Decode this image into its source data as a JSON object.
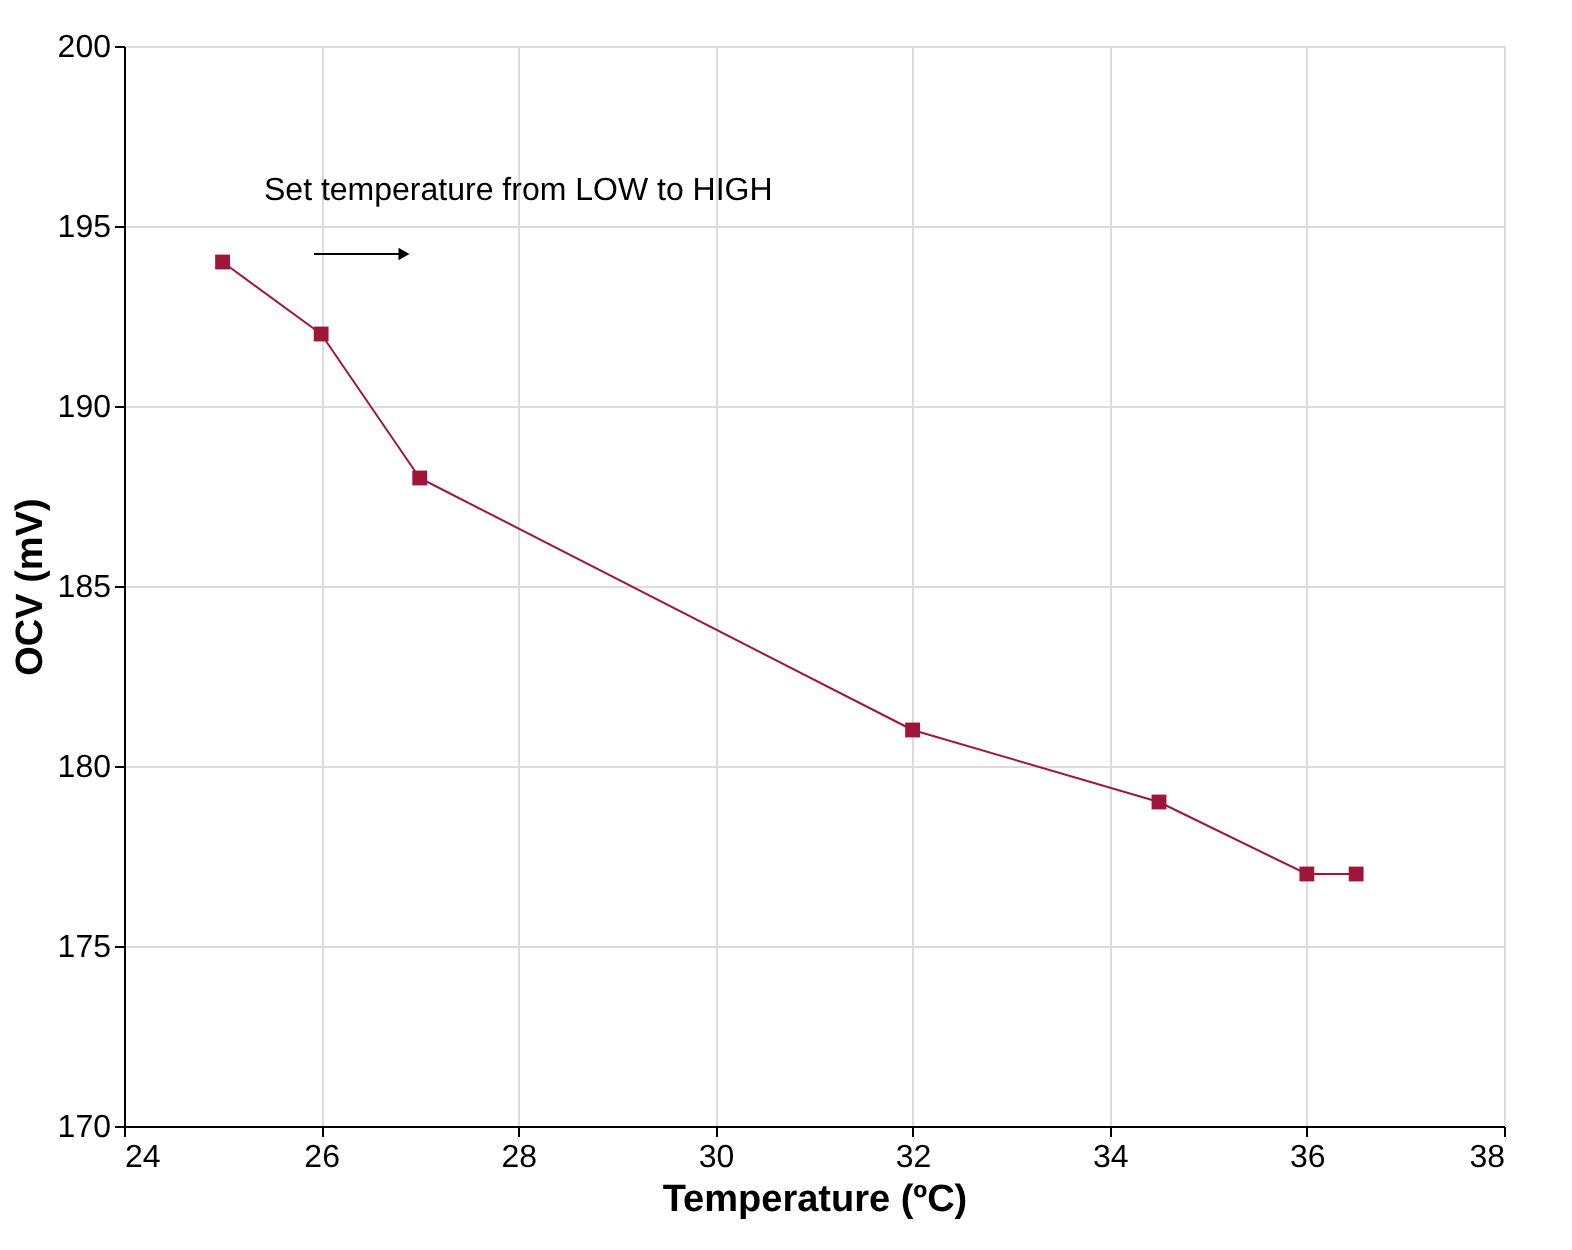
{
  "chart_data": {
    "type": "line",
    "xlabel": "Temperature (ºC)",
    "ylabel": "OCV (mV)",
    "x": [
      25,
      26,
      27,
      32,
      34.5,
      36,
      36.5
    ],
    "series": [
      {
        "color": "#a0163a",
        "values": [
          194,
          192,
          188,
          181,
          179,
          177,
          177
        ]
      }
    ],
    "xlim": [
      24,
      38
    ],
    "xticks": [
      24,
      26,
      28,
      30,
      32,
      34,
      36,
      38
    ],
    "ylim": [
      170,
      200
    ],
    "yticks": [
      170,
      175,
      180,
      185,
      190,
      195,
      200
    ],
    "grid": true,
    "marker": "square",
    "line_style": "solid",
    "annotations": [
      "Set temperature from LOW to HIGH"
    ]
  }
}
